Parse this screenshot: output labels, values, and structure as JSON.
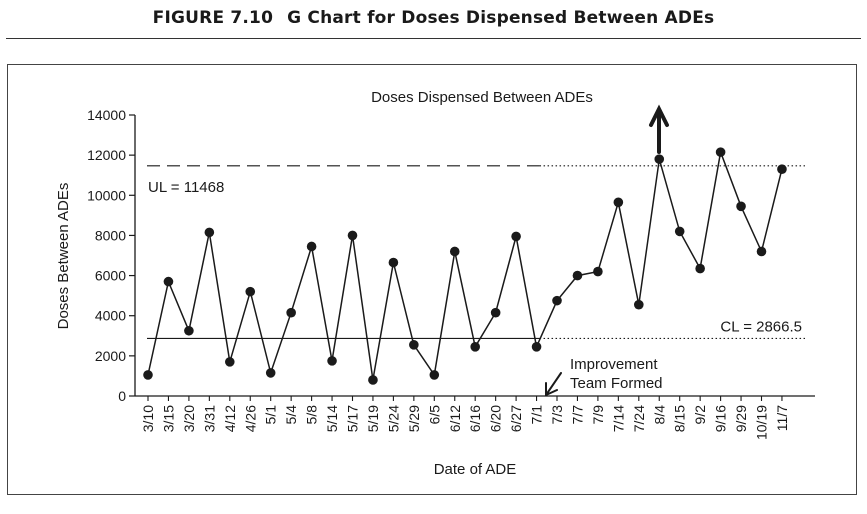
{
  "figure": {
    "number": "FIGURE 7.10",
    "caption": "G Chart for Doses Dispensed Between ADEs"
  },
  "chart_data": {
    "type": "line",
    "title": "Doses Dispensed Between ADEs",
    "xlabel": "Date of ADE",
    "ylabel": "Doses Between ADEs",
    "ylim": [
      0,
      14000
    ],
    "yticks": [
      0,
      2000,
      4000,
      6000,
      8000,
      10000,
      12000,
      14000
    ],
    "categories": [
      "3/10",
      "3/15",
      "3/20",
      "3/31",
      "4/12",
      "4/26",
      "5/1",
      "5/4",
      "5/8",
      "5/14",
      "5/17",
      "5/19",
      "5/24",
      "5/29",
      "6/5",
      "6/12",
      "6/16",
      "6/20",
      "6/27",
      "7/1",
      "7/3",
      "7/7",
      "7/9",
      "7/14",
      "7/24",
      "8/4",
      "8/15",
      "9/2",
      "9/16",
      "9/29",
      "10/19",
      "11/7"
    ],
    "series": [
      {
        "values": [
          1050,
          5700,
          3250,
          8150,
          1700,
          5200,
          1150,
          4150,
          7450,
          1750,
          8000,
          800,
          6650,
          2550,
          1050,
          7200,
          2450,
          4150,
          7950,
          2450,
          4750,
          6000,
          6200,
          9650,
          4550,
          11800,
          8200,
          6350,
          12150,
          9450,
          7200,
          11300
        ],
        "color": "#1a1a1a"
      }
    ],
    "ucl": {
      "value": 11468,
      "label": "UL = 11468"
    },
    "cl": {
      "value": 2866.5,
      "label": "CL = 2866.5"
    },
    "annotations": {
      "improvement": "Improvement\nTeam  Formed"
    },
    "grid": false
  }
}
